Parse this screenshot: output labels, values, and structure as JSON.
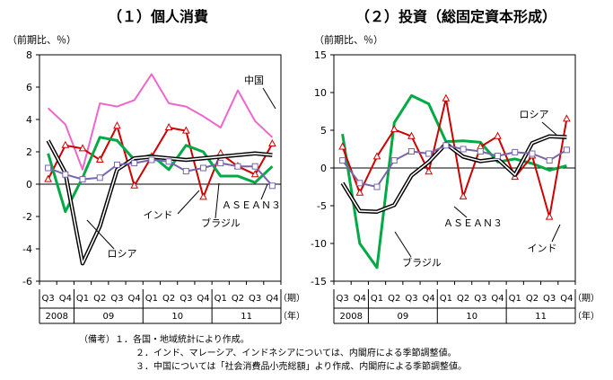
{
  "chart_data": [
    {
      "type": "line",
      "title": "（１）個人消費",
      "ylabel": "（前期比、％）",
      "ylim": [
        -6,
        8
      ],
      "yticks": [
        8,
        6,
        4,
        2,
        0,
        -2,
        -4,
        -6
      ],
      "x": [
        "2008 Q3",
        "2008 Q4",
        "2009 Q1",
        "2009 Q2",
        "2009 Q3",
        "2009 Q4",
        "2010 Q1",
        "2010 Q2",
        "2010 Q3",
        "2010 Q4",
        "2011 Q1",
        "2011 Q2",
        "2011 Q3",
        "2011 Q4"
      ],
      "quarter_labels": [
        "Q3",
        "Q4",
        "Q1",
        "Q2",
        "Q3",
        "Q4",
        "Q1",
        "Q2",
        "Q3",
        "Q4",
        "Q1",
        "Q2",
        "Q3",
        "Q4"
      ],
      "year_labels": [
        {
          "label": "2008",
          "from": 0,
          "to": 1
        },
        {
          "label": "09",
          "from": 2,
          "to": 5
        },
        {
          "label": "10",
          "from": 6,
          "to": 9
        },
        {
          "label": "11",
          "from": 10,
          "to": 13
        }
      ],
      "period_label": "（期）",
      "year_label": "（年）",
      "series": [
        {
          "name": "中国",
          "color": "#ee66cc",
          "marker": "none",
          "double": false,
          "values": [
            4.7,
            3.7,
            0.9,
            5.0,
            4.8,
            5.2,
            6.8,
            5.0,
            4.8,
            4.2,
            3.5,
            5.8,
            3.9,
            2.9
          ]
        },
        {
          "name": "インド",
          "color": "#cc0000",
          "marker": "triangle",
          "double": false,
          "values": [
            0.3,
            2.4,
            2.2,
            1.5,
            3.6,
            -0.1,
            1.7,
            3.5,
            3.3,
            -0.8,
            1.9,
            1.1,
            0.6,
            2.5
          ]
        },
        {
          "name": "ブラジル",
          "color": "#00aa44",
          "marker": "none",
          "double": false,
          "values": [
            1.9,
            -1.7,
            0.4,
            2.9,
            2.7,
            1.5,
            1.8,
            0.9,
            2.4,
            2.0,
            0.5,
            0.5,
            0.1,
            1.1
          ]
        },
        {
          "name": "ロシア",
          "color": "#000000",
          "marker": "none",
          "double": true,
          "values": [
            2.7,
            0.7,
            -4.9,
            -2.6,
            0.9,
            1.6,
            1.7,
            1.6,
            1.5,
            1.6,
            1.7,
            1.8,
            1.9,
            1.8
          ]
        },
        {
          "name": "ＡＳＥＡＮ３",
          "color": "#7766aa",
          "marker": "square",
          "double": false,
          "values": [
            1.0,
            0.6,
            0.3,
            0.4,
            1.2,
            1.3,
            1.5,
            1.4,
            0.8,
            1.0,
            1.3,
            1.1,
            1.1,
            -0.1
          ]
        }
      ],
      "annotations": [
        "中国",
        "インド",
        "ブラジル",
        "ロシア",
        "ＡＳＥＡＮ３"
      ]
    },
    {
      "type": "line",
      "title": "（２）投資（総固定資本形成）",
      "ylabel": "（前期比、％）",
      "ylim": [
        -15,
        15
      ],
      "yticks": [
        15,
        10,
        5,
        0,
        -5,
        -10,
        -15
      ],
      "x": [
        "2008 Q3",
        "2008 Q4",
        "2009 Q1",
        "2009 Q2",
        "2009 Q3",
        "2009 Q4",
        "2010 Q1",
        "2010 Q2",
        "2010 Q3",
        "2010 Q4",
        "2011 Q1",
        "2011 Q2",
        "2011 Q3",
        "2011 Q4"
      ],
      "quarter_labels": [
        "Q3",
        "Q4",
        "Q1",
        "Q2",
        "Q3",
        "Q4",
        "Q1",
        "Q2",
        "Q3",
        "Q4",
        "Q1",
        "Q2",
        "Q3",
        "Q4"
      ],
      "year_labels": [
        {
          "label": "2008",
          "from": 0,
          "to": 1
        },
        {
          "label": "09",
          "from": 2,
          "to": 5
        },
        {
          "label": "10",
          "from": 6,
          "to": 9
        },
        {
          "label": "11",
          "from": 10,
          "to": 13
        }
      ],
      "period_label": "（期）",
      "year_label": "（年）",
      "series": [
        {
          "name": "ブラジル",
          "color": "#00aa44",
          "marker": "none",
          "double": false,
          "values": [
            4.5,
            -10.0,
            -13.2,
            6.0,
            9.6,
            8.5,
            3.5,
            3.6,
            3.4,
            0.8,
            1.2,
            0.6,
            -0.3,
            0.3
          ]
        },
        {
          "name": "インド",
          "color": "#cc0000",
          "marker": "triangle",
          "double": false,
          "values": [
            2.8,
            -3.3,
            1.5,
            5.1,
            4.2,
            -0.5,
            9.2,
            -3.8,
            2.8,
            4.2,
            -1.2,
            1.6,
            -6.5,
            6.5
          ]
        },
        {
          "name": "ロシア",
          "color": "#000000",
          "marker": "none",
          "double": true,
          "values": [
            -2.0,
            -5.7,
            -5.8,
            -4.9,
            -1.0,
            0.8,
            3.2,
            1.5,
            0.9,
            1.2,
            -0.9,
            3.3,
            4.2,
            4.1
          ]
        },
        {
          "name": "ＡＳＥＡＮ３",
          "color": "#7766aa",
          "marker": "square",
          "double": false,
          "values": [
            1.0,
            -2.0,
            -2.5,
            1.0,
            2.2,
            1.9,
            3.0,
            2.5,
            2.2,
            1.6,
            2.1,
            1.9,
            1.0,
            2.4
          ]
        }
      ],
      "annotations": [
        "ロシア",
        "ＡＳＥＡＮ３",
        "ブラジル",
        "インド"
      ]
    }
  ],
  "notes": [
    "（備考）１．各国・地域統計により作成。",
    "２．インド、マレーシア、インドネシアについては、内閣府による季節調整値。",
    "３．中国については「社会消費品小売総額」より作成、内閣府による季節調整値。"
  ]
}
